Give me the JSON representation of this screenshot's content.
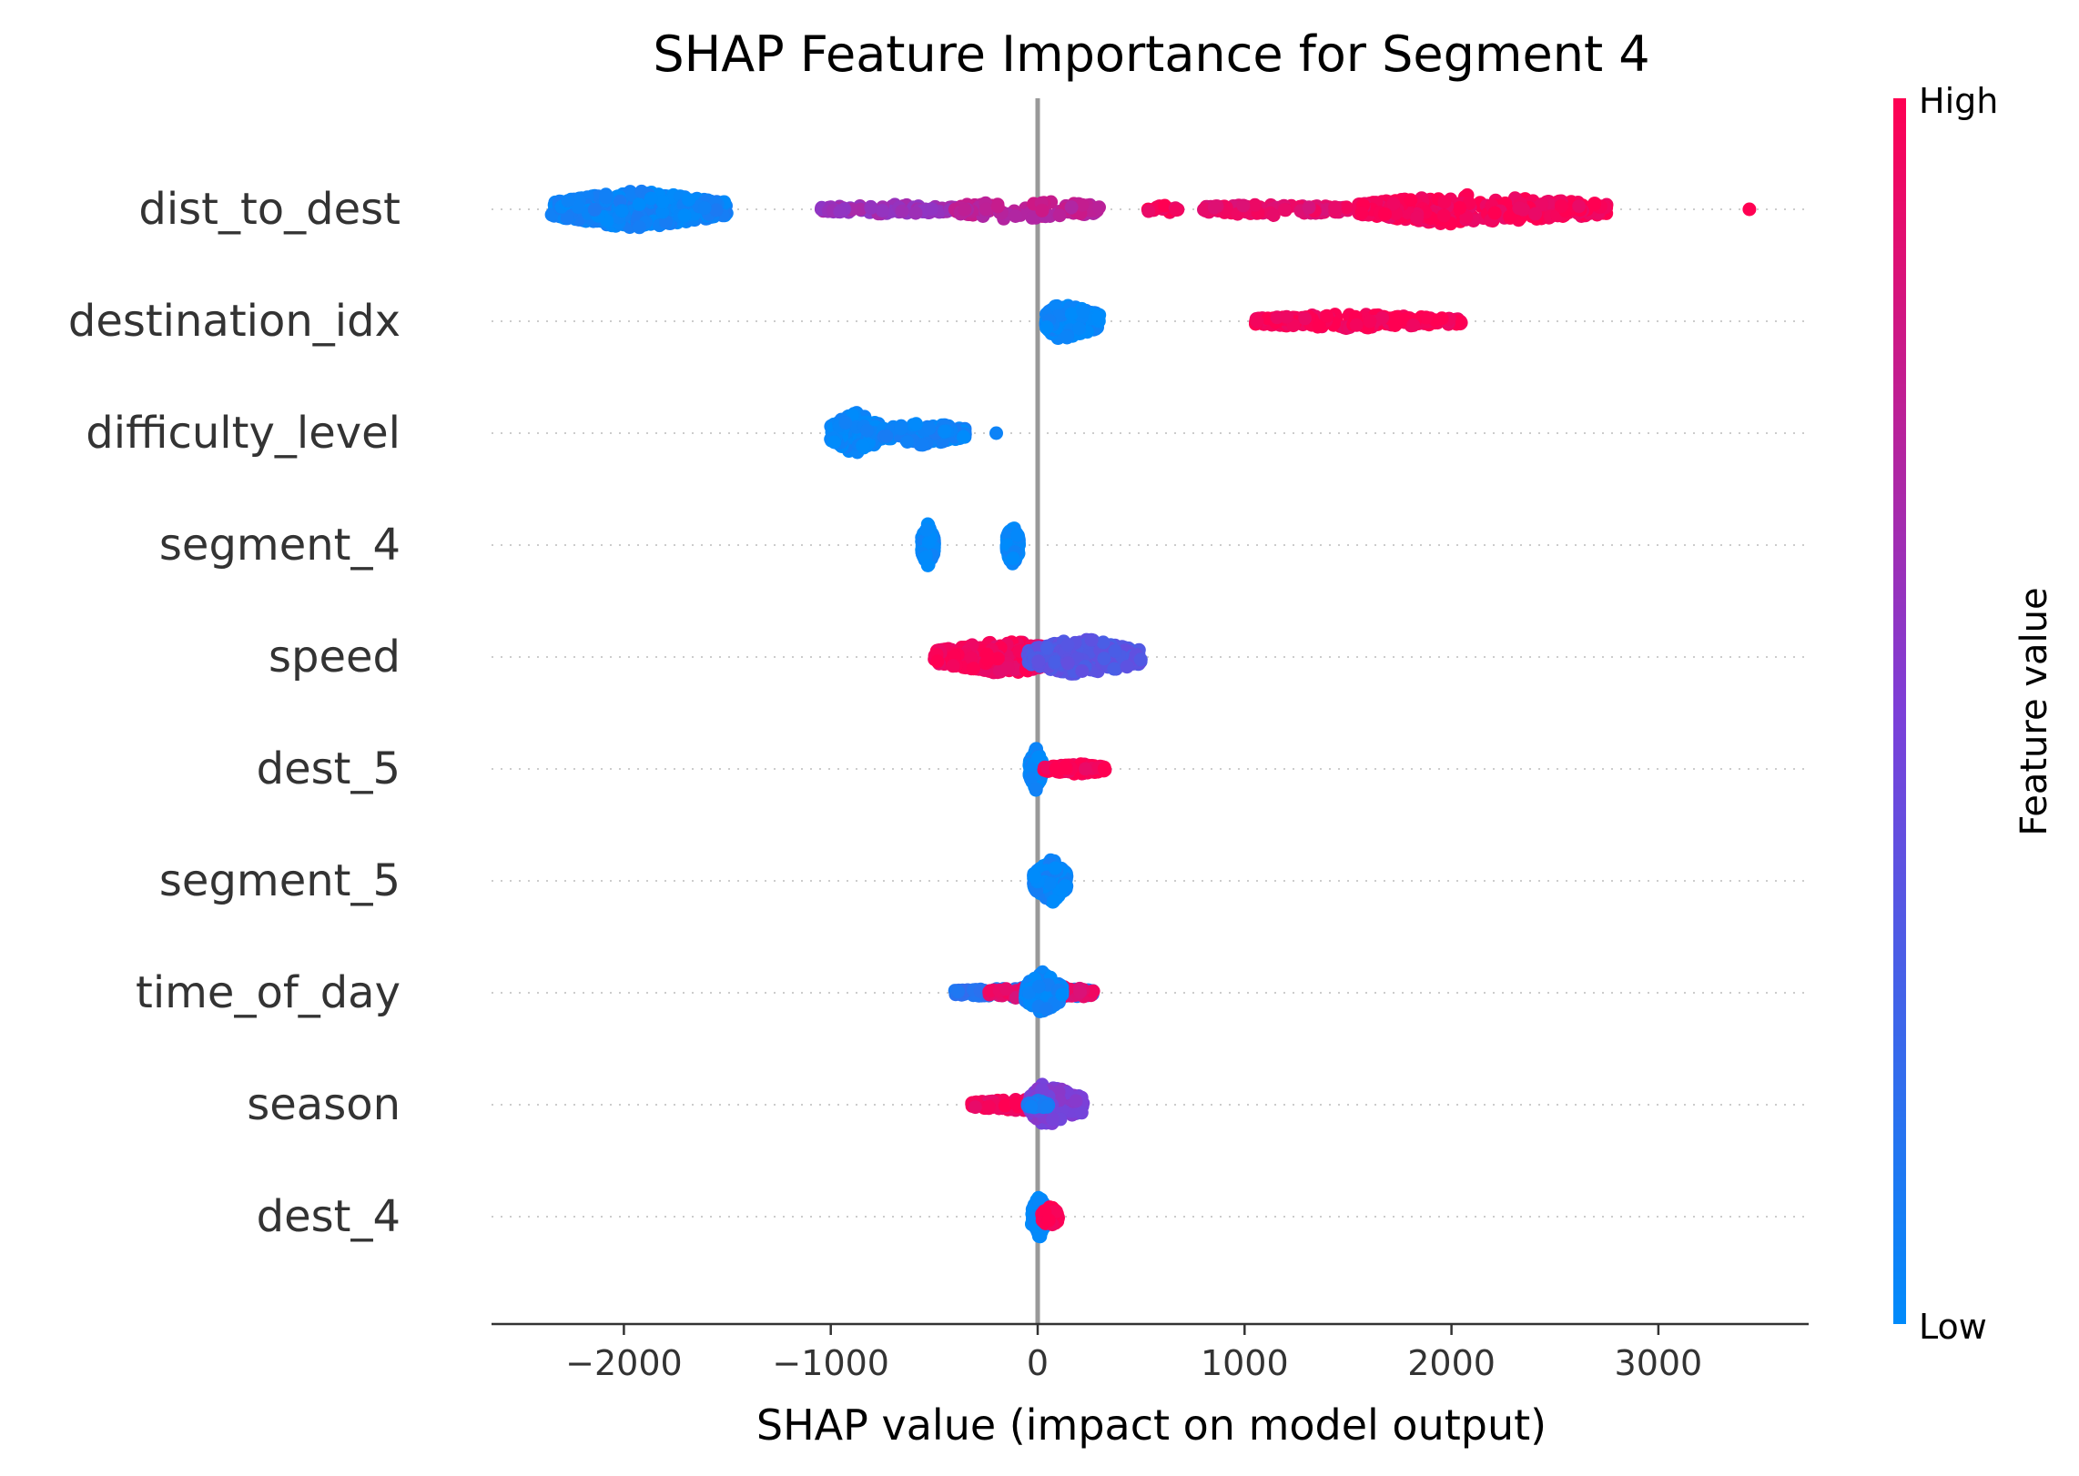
{
  "chart_data": {
    "type": "scatter",
    "subtype": "shap-beeswarm",
    "title": "SHAP Feature Importance for Segment 4",
    "xlabel": "SHAP value (impact on model output)",
    "ylabel": "",
    "xlim": [
      -2640,
      3740
    ],
    "xticks": [
      -2000,
      -1000,
      0,
      1000,
      2000,
      3000
    ],
    "xtick_labels": [
      "−2000",
      "−1000",
      "0",
      "1000",
      "2000",
      "3000"
    ],
    "grid": "horizontal dotted",
    "zero_line": 0,
    "colorbar": {
      "label": "Feature value",
      "high_label": "High",
      "low_label": "Low",
      "low_color": "#008bfb",
      "high_color": "#ff0052"
    },
    "features": [
      {
        "name": "dist_to_dest",
        "clusters": [
          {
            "min": -2350,
            "center": -1950,
            "max": -1500,
            "value": 0.05,
            "spread": 0.45,
            "n": 520
          },
          {
            "min": -1050,
            "center": -700,
            "max": -400,
            "value": 0.62,
            "spread": 0.12,
            "n": 110
          },
          {
            "min": -400,
            "center": -120,
            "max": 300,
            "value": 0.75,
            "spread": 0.25,
            "n": 110
          },
          {
            "min": 520,
            "center": 600,
            "max": 680,
            "value": 0.95,
            "spread": 0.1,
            "n": 18
          },
          {
            "min": 800,
            "center": 1100,
            "max": 1500,
            "value": 0.9,
            "spread": 0.15,
            "n": 110
          },
          {
            "min": 1550,
            "center": 2000,
            "max": 2750,
            "value": 0.97,
            "spread": 0.35,
            "n": 340
          },
          {
            "min": 3440,
            "center": 3440,
            "max": 3440,
            "value": 1.0,
            "spread": 0,
            "n": 1
          }
        ]
      },
      {
        "name": "destination_idx",
        "clusters": [
          {
            "min": 40,
            "center": 100,
            "max": 300,
            "value": 0.02,
            "spread": 0.45,
            "n": 190
          },
          {
            "min": 1050,
            "center": 1450,
            "max": 2050,
            "value": 0.98,
            "spread": 0.18,
            "n": 230
          }
        ]
      },
      {
        "name": "difficulty_level",
        "clusters": [
          {
            "min": -1000,
            "center": -880,
            "max": -750,
            "value": 0.02,
            "spread": 0.5,
            "n": 200
          },
          {
            "min": -750,
            "center": -550,
            "max": -350,
            "value": 0.05,
            "spread": 0.28,
            "n": 130
          },
          {
            "min": -200,
            "center": -200,
            "max": -200,
            "value": 0.02,
            "spread": 0,
            "n": 1
          }
        ]
      },
      {
        "name": "segment_4",
        "clusters": [
          {
            "min": -560,
            "center": -530,
            "max": -500,
            "value": 0.02,
            "spread": 0.5,
            "n": 140
          },
          {
            "min": -150,
            "center": -120,
            "max": -90,
            "value": 0.02,
            "spread": 0.5,
            "n": 140
          }
        ]
      },
      {
        "name": "speed",
        "clusters": [
          {
            "min": -500,
            "center": -150,
            "max": 150,
            "value": 0.95,
            "spread": 0.4,
            "n": 360
          },
          {
            "min": -50,
            "center": 200,
            "max": 500,
            "value": 0.35,
            "spread": 0.45,
            "n": 300
          }
        ]
      },
      {
        "name": "dest_5",
        "clusters": [
          {
            "min": -40,
            "center": -10,
            "max": 20,
            "value": 0.02,
            "spread": 0.5,
            "n": 160
          },
          {
            "min": 30,
            "center": 200,
            "max": 330,
            "value": 0.98,
            "spread": 0.12,
            "n": 130
          }
        ]
      },
      {
        "name": "segment_5",
        "clusters": [
          {
            "min": -20,
            "center": 70,
            "max": 140,
            "value": 0.03,
            "spread": 0.5,
            "n": 280
          }
        ]
      },
      {
        "name": "time_of_day",
        "clusters": [
          {
            "min": -400,
            "center": 0,
            "max": 270,
            "value": 0.15,
            "spread": 0.15,
            "n": 140
          },
          {
            "min": -250,
            "center": 50,
            "max": 270,
            "value": 0.9,
            "spread": 0.18,
            "n": 110
          },
          {
            "min": -60,
            "center": 20,
            "max": 120,
            "value": 0.03,
            "spread": 0.5,
            "n": 150
          }
        ]
      },
      {
        "name": "season",
        "clusters": [
          {
            "min": -320,
            "center": -50,
            "max": 80,
            "value": 0.95,
            "spread": 0.15,
            "n": 140
          },
          {
            "min": -40,
            "center": 30,
            "max": 220,
            "value": 0.5,
            "spread": 0.5,
            "n": 180
          },
          {
            "min": -50,
            "center": 0,
            "max": 60,
            "value": 0.1,
            "spread": 0.1,
            "n": 40
          }
        ]
      },
      {
        "name": "dest_4",
        "clusters": [
          {
            "min": -30,
            "center": 10,
            "max": 40,
            "value": 0.02,
            "spread": 0.5,
            "n": 160
          },
          {
            "min": 20,
            "center": 60,
            "max": 100,
            "value": 0.98,
            "spread": 0.25,
            "n": 110
          }
        ]
      }
    ]
  }
}
